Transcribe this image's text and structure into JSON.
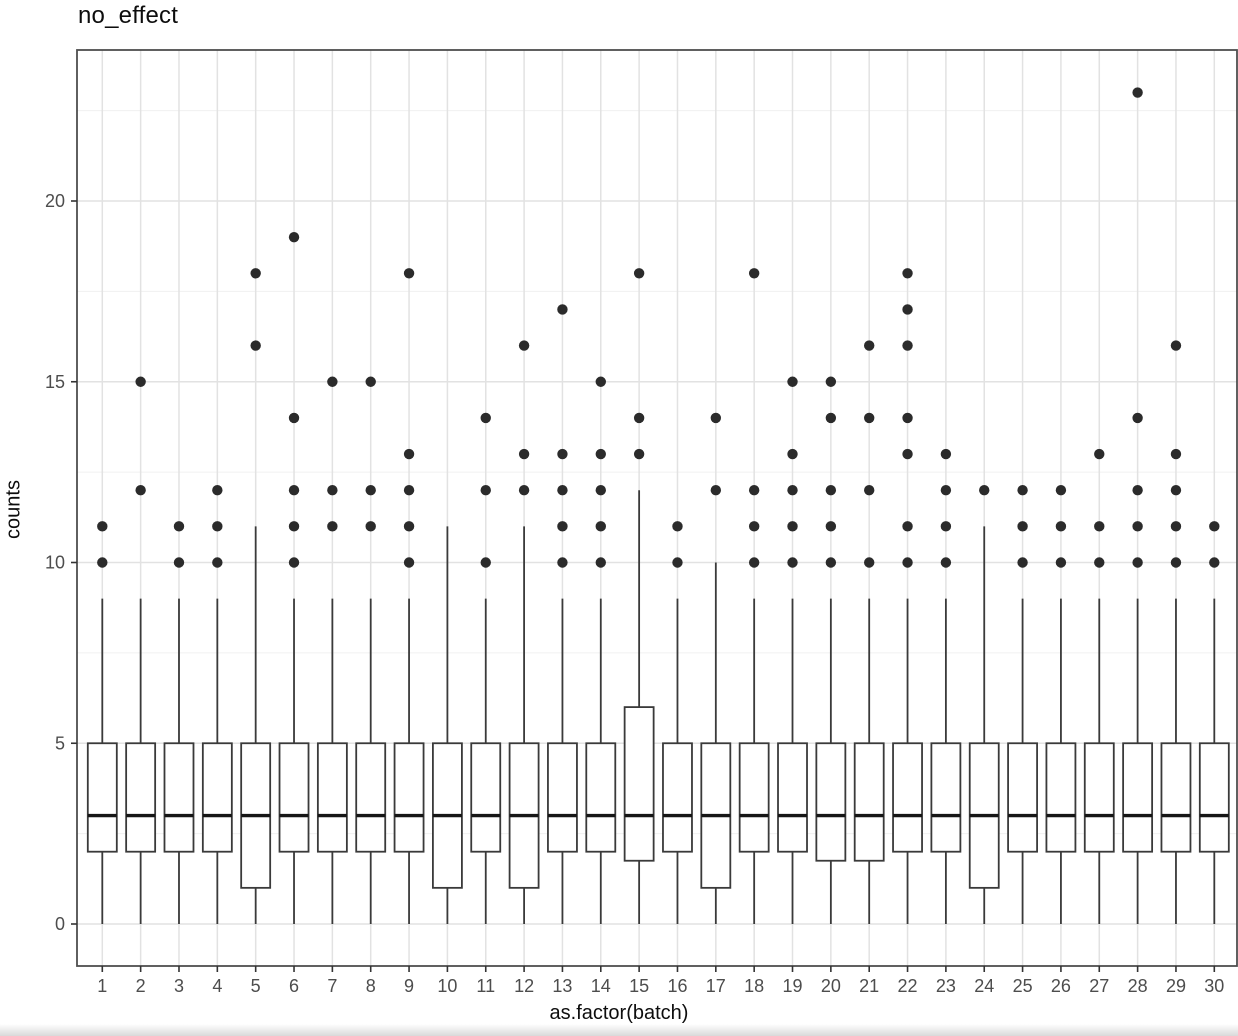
{
  "title": "no_effect",
  "axes": {
    "x": {
      "title": "as.factor(batch)"
    },
    "y": {
      "title": "counts"
    }
  },
  "colors": {
    "background": "#ffffff",
    "panel_border": "#4e4e4e",
    "grid_major": "#e2e2e2",
    "grid_minor": "#f0f0f0",
    "axis_text": "#4d4d4d",
    "tick_mark": "#333333",
    "box_stroke": "#3a3a3a",
    "box_fill": "#ffffff",
    "median": "#161616",
    "outlier": "#2b2b2b",
    "title_text": "#0d0d0d"
  },
  "chart_data": {
    "type": "boxplot",
    "title": "no_effect",
    "xlabel": "as.factor(batch)",
    "ylabel": "counts",
    "categories": [
      "1",
      "2",
      "3",
      "4",
      "5",
      "6",
      "7",
      "8",
      "9",
      "10",
      "11",
      "12",
      "13",
      "14",
      "15",
      "16",
      "17",
      "18",
      "19",
      "20",
      "21",
      "22",
      "23",
      "24",
      "25",
      "26",
      "27",
      "28",
      "29",
      "30"
    ],
    "y_ticks": [
      0,
      5,
      10,
      15,
      20
    ],
    "y_minor_gridlines": [
      2.5,
      7.5,
      12.5,
      17.5,
      22.5
    ],
    "ylim": [
      -1.17,
      24.17
    ],
    "grid": "horizontal major+minor, vertical major at each category",
    "legend": "none",
    "boxes": [
      {
        "batch": "1",
        "lower": 0,
        "q1": 2,
        "median": 3,
        "q3": 5,
        "upper": 9,
        "outliers": [
          10,
          11
        ]
      },
      {
        "batch": "2",
        "lower": 0,
        "q1": 2,
        "median": 3,
        "q3": 5,
        "upper": 9,
        "outliers": [
          12,
          15
        ]
      },
      {
        "batch": "3",
        "lower": 0,
        "q1": 2,
        "median": 3,
        "q3": 5,
        "upper": 9,
        "outliers": [
          10,
          11
        ]
      },
      {
        "batch": "4",
        "lower": 0,
        "q1": 2,
        "median": 3,
        "q3": 5,
        "upper": 9,
        "outliers": [
          10,
          11,
          12
        ]
      },
      {
        "batch": "5",
        "lower": 0,
        "q1": 1,
        "median": 3,
        "q3": 5,
        "upper": 11,
        "outliers": [
          16,
          18
        ]
      },
      {
        "batch": "6",
        "lower": 0,
        "q1": 2,
        "median": 3,
        "q3": 5,
        "upper": 9,
        "outliers": [
          10,
          11,
          12,
          14,
          19
        ]
      },
      {
        "batch": "7",
        "lower": 0,
        "q1": 2,
        "median": 3,
        "q3": 5,
        "upper": 9,
        "outliers": [
          11,
          12,
          15
        ]
      },
      {
        "batch": "8",
        "lower": 0,
        "q1": 2,
        "median": 3,
        "q3": 5,
        "upper": 9,
        "outliers": [
          11,
          12,
          15
        ]
      },
      {
        "batch": "9",
        "lower": 0,
        "q1": 2,
        "median": 3,
        "q3": 5,
        "upper": 9,
        "outliers": [
          10,
          11,
          12,
          13,
          18
        ]
      },
      {
        "batch": "10",
        "lower": 0,
        "q1": 1,
        "median": 3,
        "q3": 5,
        "upper": 11,
        "outliers": []
      },
      {
        "batch": "11",
        "lower": 0,
        "q1": 2,
        "median": 3,
        "q3": 5,
        "upper": 9,
        "outliers": [
          10,
          12,
          14
        ]
      },
      {
        "batch": "12",
        "lower": 0,
        "q1": 1,
        "median": 3,
        "q3": 5,
        "upper": 11,
        "outliers": [
          12,
          13,
          16
        ]
      },
      {
        "batch": "13",
        "lower": 0,
        "q1": 2,
        "median": 3,
        "q3": 5,
        "upper": 9,
        "outliers": [
          10,
          11,
          12,
          13,
          17
        ]
      },
      {
        "batch": "14",
        "lower": 0,
        "q1": 2,
        "median": 3,
        "q3": 5,
        "upper": 9,
        "outliers": [
          10,
          11,
          12,
          13,
          15
        ]
      },
      {
        "batch": "15",
        "lower": 0,
        "q1": 1.75,
        "median": 3,
        "q3": 6,
        "upper": 12,
        "outliers": [
          13,
          14,
          18
        ]
      },
      {
        "batch": "16",
        "lower": 0,
        "q1": 2,
        "median": 3,
        "q3": 5,
        "upper": 9,
        "outliers": [
          10,
          11
        ]
      },
      {
        "batch": "17",
        "lower": 0,
        "q1": 1,
        "median": 3,
        "q3": 5,
        "upper": 10,
        "outliers": [
          12,
          14
        ]
      },
      {
        "batch": "18",
        "lower": 0,
        "q1": 2,
        "median": 3,
        "q3": 5,
        "upper": 9,
        "outliers": [
          10,
          11,
          12,
          18
        ]
      },
      {
        "batch": "19",
        "lower": 0,
        "q1": 2,
        "median": 3,
        "q3": 5,
        "upper": 9,
        "outliers": [
          10,
          11,
          12,
          13,
          15
        ]
      },
      {
        "batch": "20",
        "lower": 0,
        "q1": 1.75,
        "median": 3,
        "q3": 5,
        "upper": 9,
        "outliers": [
          10,
          11,
          12,
          14,
          15
        ]
      },
      {
        "batch": "21",
        "lower": 0,
        "q1": 1.75,
        "median": 3,
        "q3": 5,
        "upper": 9,
        "outliers": [
          10,
          12,
          14,
          16
        ]
      },
      {
        "batch": "22",
        "lower": 0,
        "q1": 2,
        "median": 3,
        "q3": 5,
        "upper": 9,
        "outliers": [
          10,
          11,
          13,
          14,
          16,
          17,
          18
        ]
      },
      {
        "batch": "23",
        "lower": 0,
        "q1": 2,
        "median": 3,
        "q3": 5,
        "upper": 9,
        "outliers": [
          10,
          11,
          12,
          13
        ]
      },
      {
        "batch": "24",
        "lower": 0,
        "q1": 1,
        "median": 3,
        "q3": 5,
        "upper": 11,
        "outliers": [
          12
        ]
      },
      {
        "batch": "25",
        "lower": 0,
        "q1": 2,
        "median": 3,
        "q3": 5,
        "upper": 9,
        "outliers": [
          10,
          11,
          12
        ]
      },
      {
        "batch": "26",
        "lower": 0,
        "q1": 2,
        "median": 3,
        "q3": 5,
        "upper": 9,
        "outliers": [
          10,
          11,
          12
        ]
      },
      {
        "batch": "27",
        "lower": 0,
        "q1": 2,
        "median": 3,
        "q3": 5,
        "upper": 9,
        "outliers": [
          10,
          11,
          13
        ]
      },
      {
        "batch": "28",
        "lower": 0,
        "q1": 2,
        "median": 3,
        "q3": 5,
        "upper": 9,
        "outliers": [
          10,
          11,
          12,
          14,
          23
        ]
      },
      {
        "batch": "29",
        "lower": 0,
        "q1": 2,
        "median": 3,
        "q3": 5,
        "upper": 9,
        "outliers": [
          10,
          11,
          12,
          13,
          16
        ]
      },
      {
        "batch": "30",
        "lower": 0,
        "q1": 2,
        "median": 3,
        "q3": 5,
        "upper": 9,
        "outliers": [
          10,
          11
        ]
      }
    ]
  }
}
